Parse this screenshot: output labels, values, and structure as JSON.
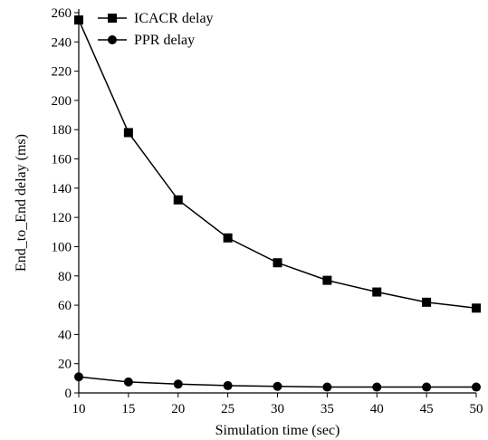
{
  "chart_data": {
    "type": "line",
    "title": "",
    "xlabel": "Simulation time (sec)",
    "ylabel": "End_to_End delay (ms)",
    "xlim": [
      10,
      50
    ],
    "ylim": [
      0,
      260
    ],
    "x_ticks": [
      10,
      15,
      20,
      25,
      30,
      35,
      40,
      45,
      50
    ],
    "y_ticks": [
      0,
      20,
      40,
      60,
      80,
      100,
      120,
      140,
      160,
      180,
      200,
      220,
      240,
      260
    ],
    "grid": false,
    "legend_position": "top-left",
    "x": [
      10,
      15,
      20,
      25,
      30,
      35,
      40,
      45,
      50
    ],
    "series": [
      {
        "name": "ICACR delay",
        "marker": "square",
        "color": "#000000",
        "values": [
          255,
          178,
          132,
          106,
          89,
          77,
          69,
          62,
          58
        ]
      },
      {
        "name": "PPR delay",
        "marker": "circle",
        "color": "#000000",
        "values": [
          11,
          7.5,
          6,
          5,
          4.5,
          4,
          4,
          4,
          4
        ]
      }
    ]
  }
}
